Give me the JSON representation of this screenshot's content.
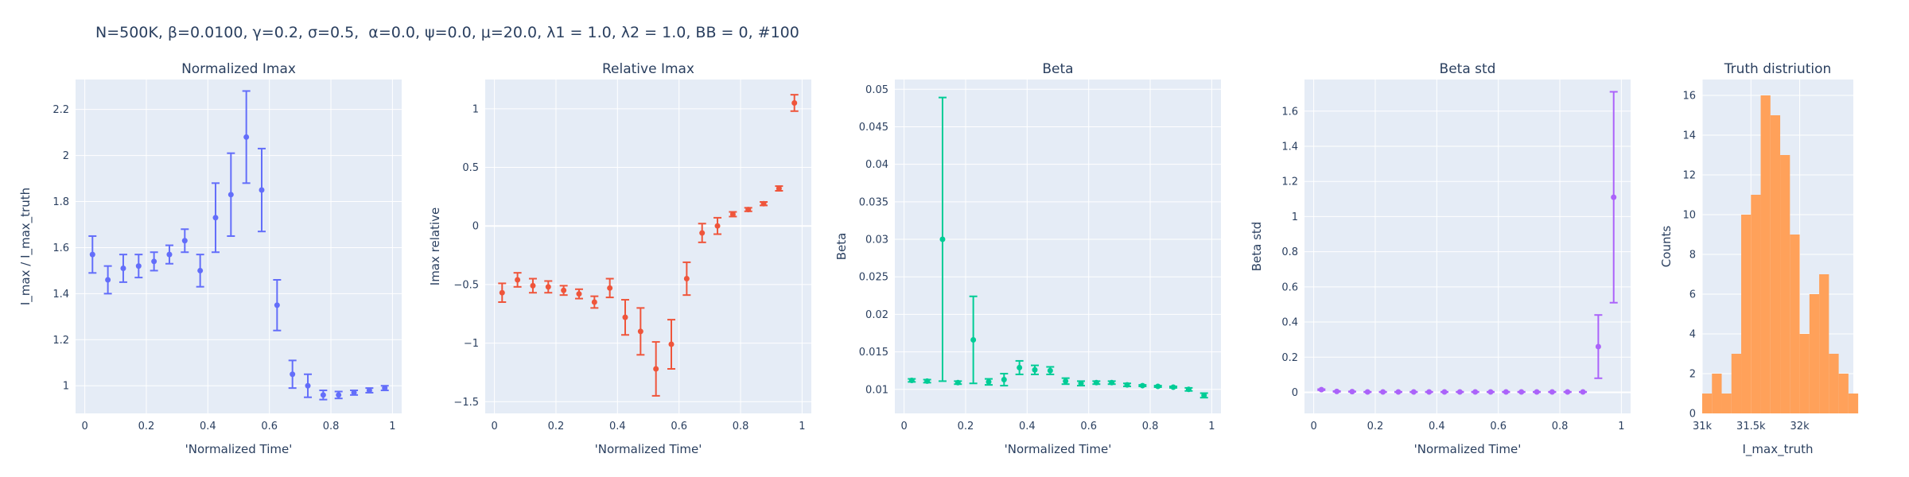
{
  "figure_title": "N=500K, β=0.0100, γ=0.2, σ=0.5,  α=0.0, ψ=0.0, μ=20.0, λ1 = 1.0, λ2 = 1.0, BB = 0, #100",
  "colors": {
    "plot_bg": "#e5ecf6",
    "grid": "#ffffff",
    "text": "#2a3f5f",
    "series1": "#636efa",
    "series2": "#ef553b",
    "series3": "#00cc96",
    "series4": "#ab63fa",
    "series5": "#ffa15a"
  },
  "chart_data": [
    {
      "type": "scatter",
      "title": "Normalized Imax",
      "xlabel": "'Normalized Time'",
      "ylabel": "I_max / I_max_truth",
      "xlim": [
        -0.03,
        1.03
      ],
      "ylim": [
        0.88,
        2.33
      ],
      "xticks": [
        0,
        0.2,
        0.4,
        0.6,
        0.8,
        1
      ],
      "xtick_labels": [
        "0",
        "0.2",
        "0.4",
        "0.6",
        "0.8",
        "1"
      ],
      "yticks": [
        1,
        1.2,
        1.4,
        1.6,
        1.8,
        2,
        2.2
      ],
      "ytick_labels": [
        "1",
        "1.2",
        "1.4",
        "1.6",
        "1.8",
        "2",
        "2.2"
      ],
      "color": "#636efa",
      "x": [
        0.025,
        0.075,
        0.125,
        0.175,
        0.225,
        0.275,
        0.325,
        0.375,
        0.425,
        0.475,
        0.525,
        0.575,
        0.625,
        0.675,
        0.725,
        0.775,
        0.825,
        0.875,
        0.925,
        0.975
      ],
      "y": [
        1.57,
        1.46,
        1.51,
        1.52,
        1.54,
        1.57,
        1.63,
        1.5,
        1.73,
        1.83,
        2.08,
        1.85,
        1.35,
        1.05,
        1.0,
        0.96,
        0.96,
        0.97,
        0.98,
        0.99
      ],
      "err": [
        0.08,
        0.06,
        0.06,
        0.05,
        0.04,
        0.04,
        0.05,
        0.07,
        0.15,
        0.18,
        0.2,
        0.18,
        0.11,
        0.06,
        0.05,
        0.02,
        0.015,
        0.01,
        0.01,
        0.01
      ]
    },
    {
      "type": "scatter",
      "title": "Relative Imax",
      "xlabel": "'Normalized Time'",
      "ylabel": "Imax relative",
      "xlim": [
        -0.03,
        1.03
      ],
      "ylim": [
        -1.6,
        1.25
      ],
      "xticks": [
        0,
        0.2,
        0.4,
        0.6,
        0.8,
        1
      ],
      "xtick_labels": [
        "0",
        "0.2",
        "0.4",
        "0.6",
        "0.8",
        "1"
      ],
      "yticks": [
        -1.5,
        -1,
        -0.5,
        0,
        0.5,
        1
      ],
      "ytick_labels": [
        "−1.5",
        "−1",
        "−0.5",
        "0",
        "0.5",
        "1"
      ],
      "zeroline": true,
      "color": "#ef553b",
      "x": [
        0.025,
        0.075,
        0.125,
        0.175,
        0.225,
        0.275,
        0.325,
        0.375,
        0.425,
        0.475,
        0.525,
        0.575,
        0.625,
        0.675,
        0.725,
        0.775,
        0.825,
        0.875,
        0.925,
        0.975
      ],
      "y": [
        -0.57,
        -0.46,
        -0.51,
        -0.52,
        -0.55,
        -0.58,
        -0.65,
        -0.53,
        -0.78,
        -0.9,
        -1.22,
        -1.01,
        -0.45,
        -0.06,
        0.0,
        0.1,
        0.14,
        0.19,
        0.32,
        1.05
      ],
      "err": [
        0.08,
        0.06,
        0.06,
        0.05,
        0.04,
        0.04,
        0.05,
        0.08,
        0.15,
        0.2,
        0.23,
        0.21,
        0.14,
        0.08,
        0.07,
        0.02,
        0.015,
        0.015,
        0.02,
        0.07
      ]
    },
    {
      "type": "scatter",
      "title": "Beta",
      "xlabel": "'Normalized Time'",
      "ylabel": "Beta",
      "xlim": [
        -0.03,
        1.03
      ],
      "ylim": [
        0.0068,
        0.0513
      ],
      "xticks": [
        0,
        0.2,
        0.4,
        0.6,
        0.8,
        1
      ],
      "xtick_labels": [
        "0",
        "0.2",
        "0.4",
        "0.6",
        "0.8",
        "1"
      ],
      "yticks": [
        0.01,
        0.015,
        0.02,
        0.025,
        0.03,
        0.035,
        0.04,
        0.045,
        0.05
      ],
      "ytick_labels": [
        "0.01",
        "0.015",
        "0.02",
        "0.025",
        "0.03",
        "0.035",
        "0.04",
        "0.045",
        "0.05"
      ],
      "color": "#00cc96",
      "x": [
        0.025,
        0.075,
        0.125,
        0.175,
        0.225,
        0.275,
        0.325,
        0.375,
        0.425,
        0.475,
        0.525,
        0.575,
        0.625,
        0.675,
        0.725,
        0.775,
        0.825,
        0.875,
        0.925,
        0.975
      ],
      "y": [
        0.0112,
        0.0111,
        0.03,
        0.0109,
        0.0166,
        0.011,
        0.0113,
        0.0129,
        0.0126,
        0.0125,
        0.0111,
        0.0108,
        0.0109,
        0.0109,
        0.0106,
        0.0105,
        0.0104,
        0.0103,
        0.01,
        0.0092
      ],
      "err": [
        0.0002,
        0.0002,
        0.0189,
        0.0002,
        0.0058,
        0.0004,
        0.0008,
        0.0009,
        0.0006,
        0.0005,
        0.0004,
        0.0003,
        0.0002,
        0.0002,
        0.0002,
        0.0001,
        0.0001,
        0.0001,
        0.0002,
        0.0003
      ]
    },
    {
      "type": "scatter",
      "title": "Beta std",
      "xlabel": "'Normalized Time'",
      "ylabel": "Beta std",
      "xlim": [
        -0.03,
        1.03
      ],
      "ylim": [
        -0.12,
        1.78
      ],
      "xticks": [
        0,
        0.2,
        0.4,
        0.6,
        0.8,
        1
      ],
      "xtick_labels": [
        "0",
        "0.2",
        "0.4",
        "0.6",
        "0.8",
        "1"
      ],
      "yticks": [
        0,
        0.2,
        0.4,
        0.6,
        0.8,
        1,
        1.2,
        1.4,
        1.6
      ],
      "ytick_labels": [
        "0",
        "0.2",
        "0.4",
        "0.6",
        "0.8",
        "1",
        "1.2",
        "1.4",
        "1.6"
      ],
      "zeroline": true,
      "color": "#ab63fa",
      "x": [
        0.025,
        0.075,
        0.125,
        0.175,
        0.225,
        0.275,
        0.325,
        0.375,
        0.425,
        0.475,
        0.525,
        0.575,
        0.625,
        0.675,
        0.725,
        0.775,
        0.825,
        0.875,
        0.925,
        0.975
      ],
      "y": [
        0.015,
        0.005,
        0.004,
        0.002,
        0.002,
        0.002,
        0.002,
        0.002,
        0.002,
        0.002,
        0.002,
        0.002,
        0.002,
        0.002,
        0.002,
        0.002,
        0.002,
        0.002,
        0.26,
        1.11
      ],
      "err": [
        0.003,
        0.002,
        0.001,
        0.001,
        0.001,
        0.001,
        0.001,
        0.001,
        0.001,
        0.001,
        0.001,
        0.001,
        0.001,
        0.001,
        0.001,
        0.001,
        0.001,
        0.001,
        0.18,
        0.6
      ]
    },
    {
      "type": "bar",
      "title": "Truth distriution",
      "xlabel": "I_max_truth",
      "ylabel": "Counts",
      "xlim": [
        31000,
        32550
      ],
      "ylim": [
        0,
        16.8
      ],
      "xticks": [
        31000,
        31500,
        32000
      ],
      "xtick_labels": [
        "31k",
        "31.5k",
        "32k"
      ],
      "yticks": [
        0,
        2,
        4,
        6,
        8,
        10,
        12,
        14,
        16
      ],
      "ytick_labels": [
        "0",
        "2",
        "4",
        "6",
        "8",
        "10",
        "12",
        "14",
        "16"
      ],
      "color": "#ffa15a",
      "bin_starts": [
        31000,
        31100,
        31200,
        31300,
        31400,
        31500,
        31600,
        31700,
        31800,
        31900,
        32000,
        32100,
        32200,
        32300,
        32400,
        32500
      ],
      "bin_width": 100,
      "values": [
        1,
        2,
        1,
        3,
        10,
        11,
        16,
        15,
        13,
        9,
        4,
        6,
        7,
        3,
        2,
        1
      ]
    }
  ]
}
